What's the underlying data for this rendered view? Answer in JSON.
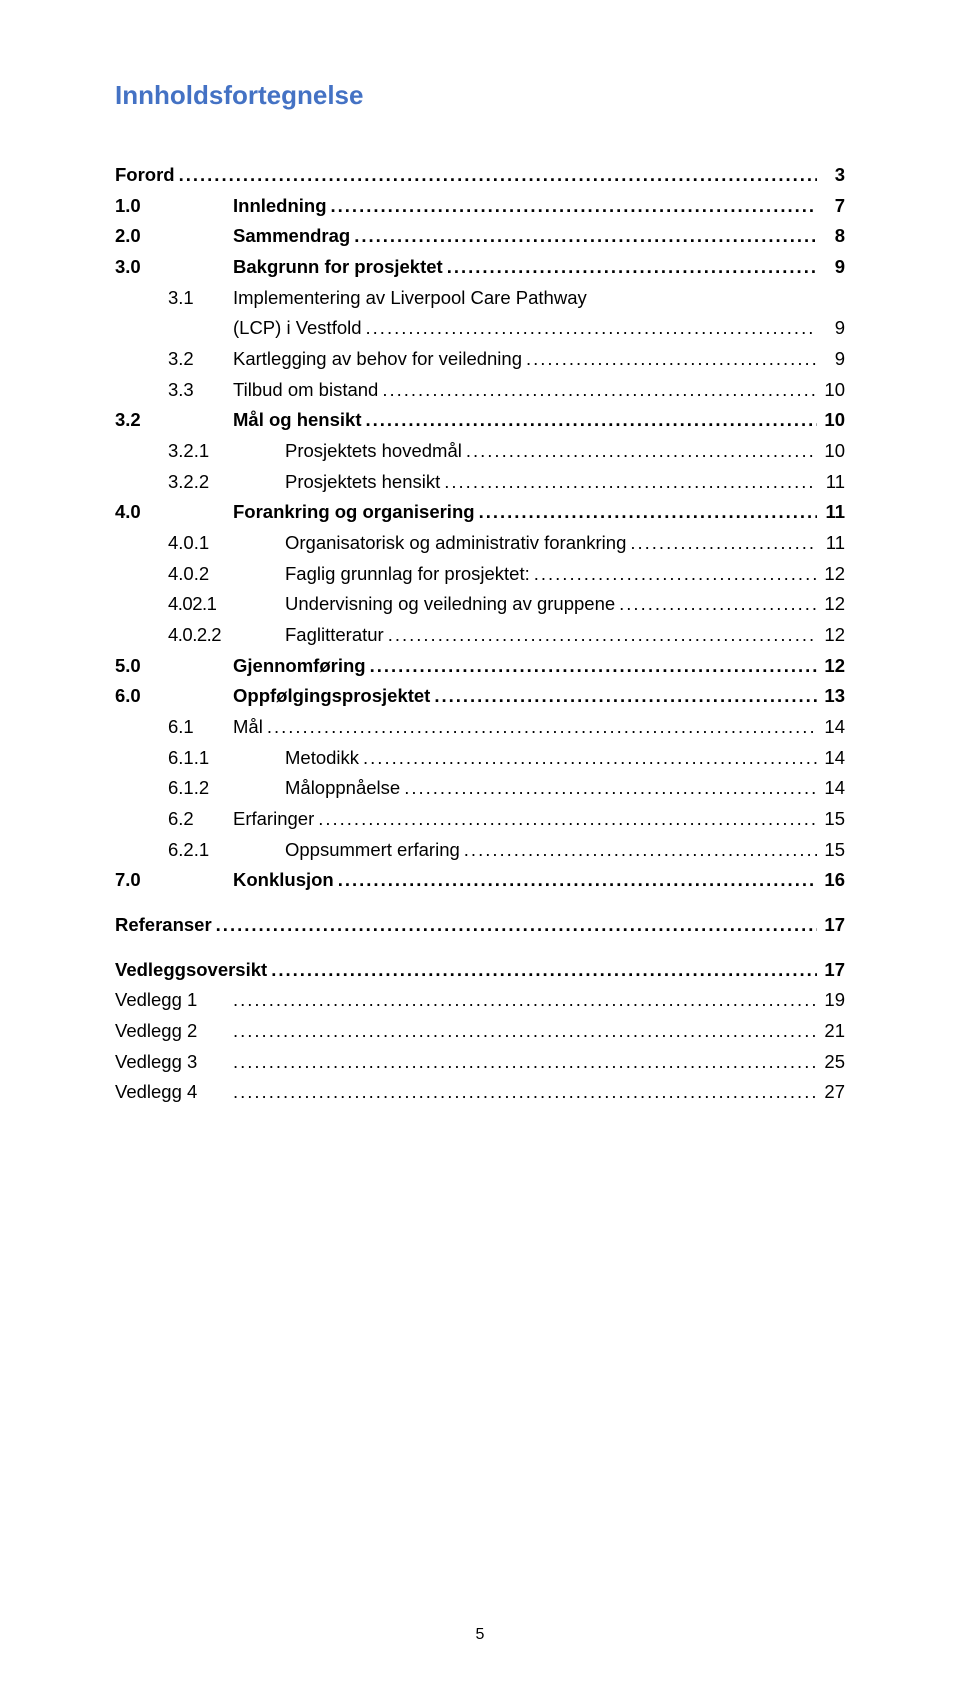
{
  "title": "Innholdsfortegnelse",
  "page_number": "5",
  "entries": [
    {
      "num": "Forord",
      "label": "",
      "page": "3",
      "level": 0,
      "bold": true,
      "noFill": false
    },
    {
      "num": "1.0",
      "label": "Innledning",
      "page": "7",
      "level": 1,
      "bold": true
    },
    {
      "num": "2.0",
      "label": "Sammendrag",
      "page": "8",
      "level": 1,
      "bold": true
    },
    {
      "num": "3.0",
      "label": "Bakgrunn for prosjektet",
      "page": "9",
      "level": 1,
      "bold": true
    },
    {
      "num": "3.1",
      "label": "Implementering av Liverpool Care Pathway (LCP) i Vestfold",
      "page": "9",
      "level": 2,
      "bold": false,
      "wrap": true
    },
    {
      "num": "3.2",
      "label": "Kartlegging av behov for veiledning",
      "page": "9",
      "level": 2,
      "bold": false
    },
    {
      "num": "3.3",
      "label": "Tilbud om bistand",
      "page": "10",
      "level": 2,
      "bold": false
    },
    {
      "num": "3.2",
      "label": "Mål og hensikt",
      "page": "10",
      "level": 1,
      "bold": true
    },
    {
      "num": "3.2.1",
      "label": "Prosjektets hovedmål",
      "page": "10",
      "level": 3,
      "bold": false
    },
    {
      "num": "3.2.2",
      "label": "Prosjektets hensikt",
      "page": "11",
      "level": 3,
      "bold": false
    },
    {
      "num": "4.0",
      "label": "Forankring og organisering",
      "page": "11",
      "level": 1,
      "bold": true
    },
    {
      "num": "4.0.1",
      "label": "Organisatorisk og administrativ forankring",
      "page": "11",
      "level": 3,
      "bold": false
    },
    {
      "num": "4.0.2",
      "label": "Faglig grunnlag for prosjektet:",
      "page": "12",
      "level": 3,
      "bold": false
    },
    {
      "num": "4.02.1",
      "label": "Undervisning og veiledning av gruppene",
      "page": "12",
      "level": 4,
      "bold": false
    },
    {
      "num": "4.0.2.2",
      "label": "Faglitteratur",
      "page": "12",
      "level": 4,
      "bold": false
    },
    {
      "num": "5.0",
      "label": "Gjennomføring",
      "page": "12",
      "level": 1,
      "bold": true
    },
    {
      "num": "6.0",
      "label": "Oppfølgingsprosjektet",
      "page": "13",
      "level": 1,
      "bold": true
    },
    {
      "num": "6.1",
      "label": "Mål",
      "page": "14",
      "level": 2,
      "bold": false
    },
    {
      "num": "6.1.1",
      "label": "Metodikk",
      "page": "14",
      "level": 3,
      "bold": false
    },
    {
      "num": "6.1.2",
      "label": "Måloppnåelse",
      "page": "14",
      "level": 3,
      "bold": false
    },
    {
      "num": "6.2",
      "label": "Erfaringer",
      "page": "15",
      "level": 2,
      "bold": false
    },
    {
      "num": "6.2.1",
      "label": "Oppsummert erfaring",
      "page": "15",
      "level": 3,
      "bold": false
    },
    {
      "num": "7.0",
      "label": "Konklusjon",
      "page": "16",
      "level": 1,
      "bold": true
    },
    {
      "gap": true
    },
    {
      "num": "Referanser",
      "label": "",
      "page": "17",
      "level": 0,
      "bold": true
    },
    {
      "gap": true
    },
    {
      "num": "Vedleggsoversikt",
      "label": "",
      "page": "17",
      "level": 0,
      "bold": true
    },
    {
      "num": "Vedlegg 1",
      "label": "",
      "page": "19",
      "level": 1,
      "bold": false
    },
    {
      "num": "Vedlegg 2",
      "label": "",
      "page": "21",
      "level": 1,
      "bold": false
    },
    {
      "num": "Vedlegg 3",
      "label": "",
      "page": "25",
      "level": 1,
      "bold": false
    },
    {
      "num": "Vedlegg 4",
      "label": "",
      "page": "27",
      "level": 1,
      "bold": false
    }
  ]
}
